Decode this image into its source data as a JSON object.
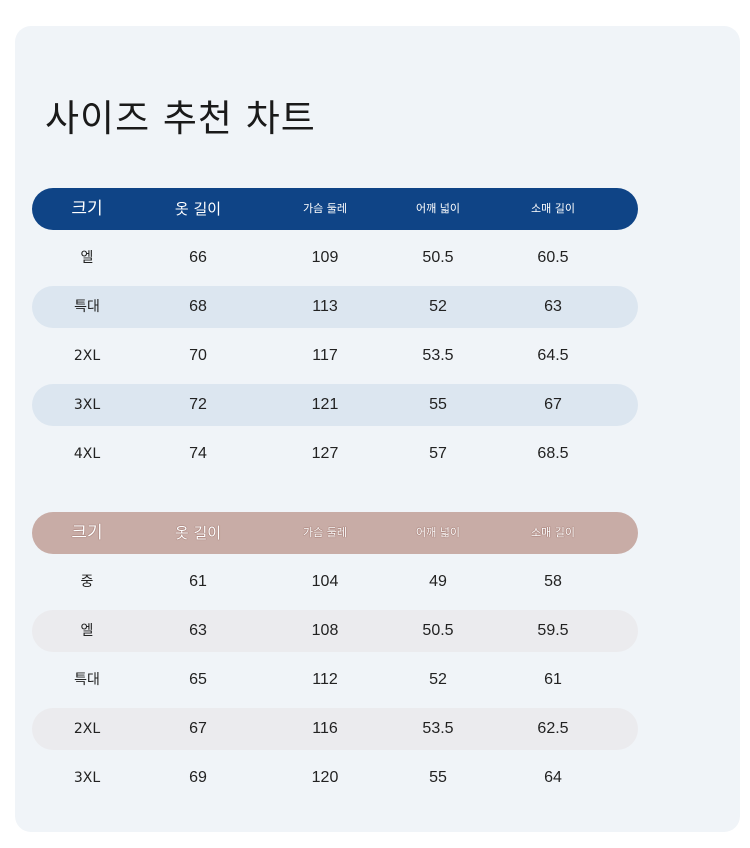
{
  "title": "사이즈 추천 차트",
  "headers": [
    "크기",
    "옷 길이",
    "가슴 둘레",
    "어깨 넓이",
    "소매 길이"
  ],
  "tables": [
    {
      "header_color": "#0f4486",
      "rows": [
        [
          "엘",
          "66",
          "109",
          "50.5",
          "60.5"
        ],
        [
          "특대",
          "68",
          "113",
          "52",
          "63"
        ],
        [
          "2XL",
          "70",
          "117",
          "53.5",
          "64.5"
        ],
        [
          "3XL",
          "72",
          "121",
          "55",
          "67"
        ],
        [
          "4XL",
          "74",
          "127",
          "57",
          "68.5"
        ]
      ]
    },
    {
      "header_color": "#c8aca6",
      "rows": [
        [
          "중",
          "61",
          "104",
          "49",
          "58"
        ],
        [
          "엘",
          "63",
          "108",
          "50.5",
          "59.5"
        ],
        [
          "특대",
          "65",
          "112",
          "52",
          "61"
        ],
        [
          "2XL",
          "67",
          "116",
          "53.5",
          "62.5"
        ],
        [
          "3XL",
          "69",
          "120",
          "55",
          "64"
        ]
      ]
    }
  ]
}
